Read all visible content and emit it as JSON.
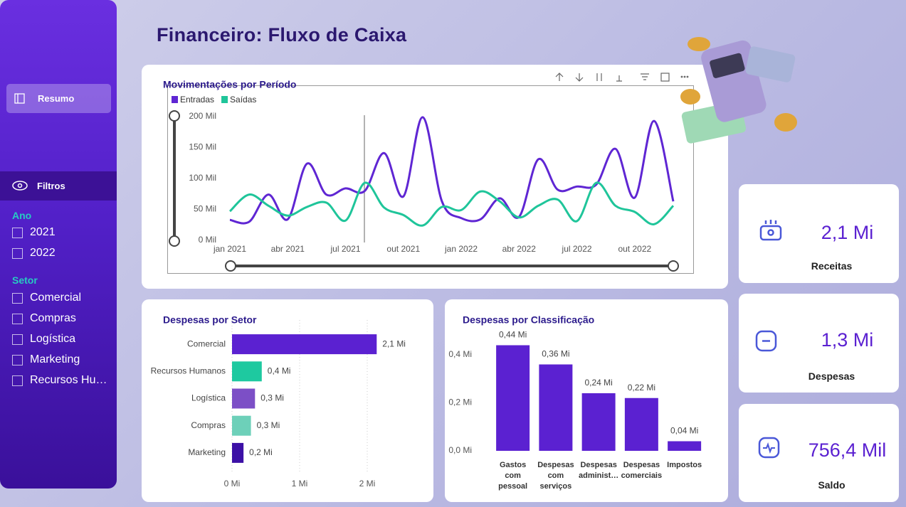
{
  "header": {
    "title": "Financeiro: Fluxo de Caixa"
  },
  "sidebar": {
    "nav": "Resumo",
    "filters_title": "Filtros",
    "filters": [
      {
        "label": "Ano",
        "options": [
          "2021",
          "2022"
        ]
      },
      {
        "label": "Setor",
        "options": [
          "Comercial",
          "Compras",
          "Logística",
          "Marketing",
          "Recursos Hu…"
        ]
      }
    ]
  },
  "chart_data": [
    {
      "type": "line",
      "title": "Movimentações por Período",
      "categories": [
        "jan 2021",
        null,
        null,
        "abr 2021",
        null,
        null,
        "jul 2021",
        null,
        null,
        "out 2021",
        null,
        null,
        "jan 2022",
        null,
        null,
        "abr 2022",
        null,
        null,
        "jul 2022",
        null,
        null,
        "out 2022",
        null,
        null
      ],
      "series": [
        {
          "name": "Entradas",
          "color": "#5f26d3",
          "values": [
            33,
            30,
            74,
            34,
            124,
            74,
            84,
            80,
            141,
            71,
            199,
            63,
            36,
            34,
            68,
            38,
            131,
            82,
            87,
            90,
            148,
            69,
            193,
            63
          ]
        },
        {
          "name": "Saídas",
          "color": "#1fc59a",
          "values": [
            47,
            74,
            56,
            40,
            54,
            61,
            32,
            93,
            53,
            41,
            24,
            54,
            49,
            79,
            63,
            37,
            56,
            66,
            31,
            93,
            56,
            46,
            26,
            56
          ]
        }
      ],
      "ylim": [
        0,
        200
      ],
      "yticks": [
        {
          "value": 0,
          "label": "0 Mil"
        },
        {
          "value": 50,
          "label": "50 Mil"
        },
        {
          "value": 100,
          "label": "100 Mil"
        },
        {
          "value": 150,
          "label": "150 Mil"
        },
        {
          "value": 200,
          "label": "200 Mil"
        }
      ]
    },
    {
      "type": "bar",
      "orientation": "horizontal",
      "title": "Despesas por Setor",
      "categories": [
        "Comercial",
        "Recursos Humanos",
        "Logística",
        "Compras",
        "Marketing"
      ],
      "values": [
        2.14,
        0.44,
        0.34,
        0.28,
        0.17
      ],
      "value_labels": [
        "2,1 Mi",
        "0,4 Mi",
        "0,3 Mi",
        "0,3 Mi",
        "0,2 Mi"
      ],
      "colors": [
        "#5b21d1",
        "#1ec9a0",
        "#7c4fc6",
        "#6dd0b9",
        "#3c10a6"
      ],
      "xlim": [
        0,
        2.3
      ],
      "xticks": [
        {
          "value": 0,
          "label": "0 Mi"
        },
        {
          "value": 1,
          "label": "1 Mi"
        },
        {
          "value": 2,
          "label": "2 Mi"
        }
      ],
      "grid": true
    },
    {
      "type": "bar",
      "orientation": "vertical",
      "title": "Despesas por Classificação",
      "categories": [
        "Gastos com pessoal",
        "Despesas com serviços",
        "Despesas administ…",
        "Despesas comerciais",
        "Impostos"
      ],
      "values": [
        0.44,
        0.36,
        0.24,
        0.22,
        0.04
      ],
      "value_labels": [
        "0,44 Mi",
        "0,36 Mi",
        "0,24 Mi",
        "0,22 Mi",
        "0,04 Mi"
      ],
      "color": "#5b21d1",
      "ylim": [
        0,
        0.5
      ],
      "yticks": [
        {
          "value": 0,
          "label": "0,0 Mi"
        },
        {
          "value": 0.2,
          "label": "0,2 Mi"
        },
        {
          "value": 0.4,
          "label": "0,4 Mi"
        }
      ]
    }
  ],
  "kpis": [
    {
      "value": "2,1 Mi",
      "label": "Receitas"
    },
    {
      "value": "1,3 Mi",
      "label": "Despesas"
    },
    {
      "value": "756,4 Mil",
      "label": "Saldo"
    }
  ]
}
